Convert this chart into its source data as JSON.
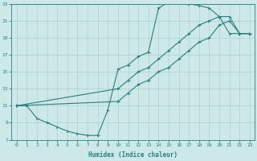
{
  "xlabel": "Humidex (Indice chaleur)",
  "ylabel": "",
  "bg_color": "#cce8e8",
  "line_color": "#2d7d7d",
  "grid_color": "#b0d0d0",
  "xlim": [
    -0.5,
    23.5
  ],
  "ylim": [
    7,
    23
  ],
  "xticks": [
    0,
    1,
    2,
    3,
    4,
    5,
    6,
    7,
    8,
    9,
    10,
    11,
    12,
    13,
    14,
    15,
    16,
    17,
    18,
    19,
    20,
    21,
    22,
    23
  ],
  "yticks": [
    7,
    9,
    11,
    13,
    15,
    17,
    19,
    21,
    23
  ],
  "line1": {
    "x": [
      0,
      1,
      2,
      3,
      4,
      5,
      6,
      7,
      8,
      9,
      10,
      11,
      12,
      13,
      14,
      15,
      16,
      17,
      18,
      19,
      20,
      21,
      22,
      23
    ],
    "y": [
      11.0,
      11.0,
      9.5,
      9.0,
      8.5,
      8.0,
      7.7,
      7.5,
      7.5,
      10.5,
      15.3,
      15.8,
      16.8,
      17.3,
      22.5,
      23.2,
      23.5,
      23.0,
      22.8,
      22.5,
      21.5,
      19.5,
      19.5,
      19.5
    ]
  },
  "line2": {
    "x": [
      0,
      10,
      11,
      12,
      13,
      14,
      15,
      16,
      17,
      18,
      19,
      20,
      21,
      22,
      23
    ],
    "y": [
      11.0,
      13.0,
      14.0,
      15.0,
      15.5,
      16.5,
      17.5,
      18.5,
      19.5,
      20.5,
      21.0,
      21.5,
      21.5,
      19.5,
      19.5
    ]
  },
  "line3": {
    "x": [
      0,
      10,
      11,
      12,
      13,
      14,
      15,
      16,
      17,
      18,
      19,
      20,
      21,
      22,
      23
    ],
    "y": [
      11.0,
      11.5,
      12.5,
      13.5,
      14.0,
      15.0,
      15.5,
      16.5,
      17.5,
      18.5,
      19.0,
      20.5,
      21.0,
      19.5,
      19.5
    ]
  }
}
